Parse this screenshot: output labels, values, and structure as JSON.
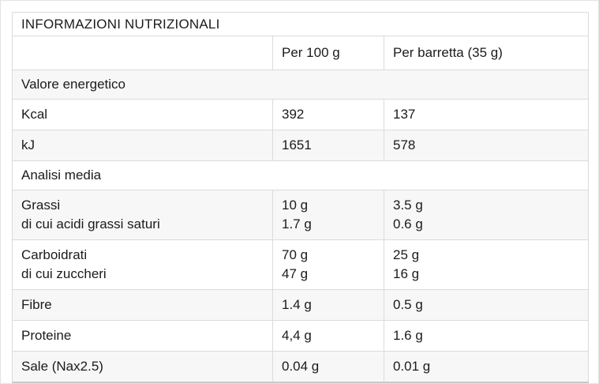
{
  "table": {
    "title": "INFORMAZIONI NUTRIZIONALI",
    "col_headers": [
      "",
      "Per 100 g",
      "Per barretta (35 g)"
    ],
    "sections": [
      {
        "name": "Valore energetico",
        "rows": [
          {
            "label": [
              "Kcal"
            ],
            "per_100g": [
              "392"
            ],
            "per_barretta": [
              "137"
            ]
          },
          {
            "label": [
              "kJ"
            ],
            "per_100g": [
              "1651"
            ],
            "per_barretta": [
              "578"
            ]
          }
        ]
      },
      {
        "name": "Analisi media",
        "rows": [
          {
            "label": [
              "Grassi",
              "di cui acidi grassi saturi"
            ],
            "per_100g": [
              "10 g",
              "1.7 g"
            ],
            "per_barretta": [
              "3.5 g",
              "0.6 g"
            ]
          },
          {
            "label": [
              "Carboidrati",
              "di cui zuccheri"
            ],
            "per_100g": [
              "70 g",
              "47 g"
            ],
            "per_barretta": [
              "25 g",
              "16 g"
            ]
          },
          {
            "label": [
              "Fibre"
            ],
            "per_100g": [
              "1.4 g"
            ],
            "per_barretta": [
              "0.5 g"
            ]
          },
          {
            "label": [
              "Proteine"
            ],
            "per_100g": [
              "4,4 g"
            ],
            "per_barretta": [
              "1.6 g"
            ]
          },
          {
            "label": [
              "Sale (Nax2.5)"
            ],
            "per_100g": [
              "0.04 g"
            ],
            "per_barretta": [
              "0.01 g"
            ]
          }
        ]
      }
    ],
    "colors": {
      "border": "#dbdbdb",
      "stripe_background": "#f7f7f7",
      "text": "#1b1b1b",
      "bottom_border": "#c8c8c8"
    }
  }
}
